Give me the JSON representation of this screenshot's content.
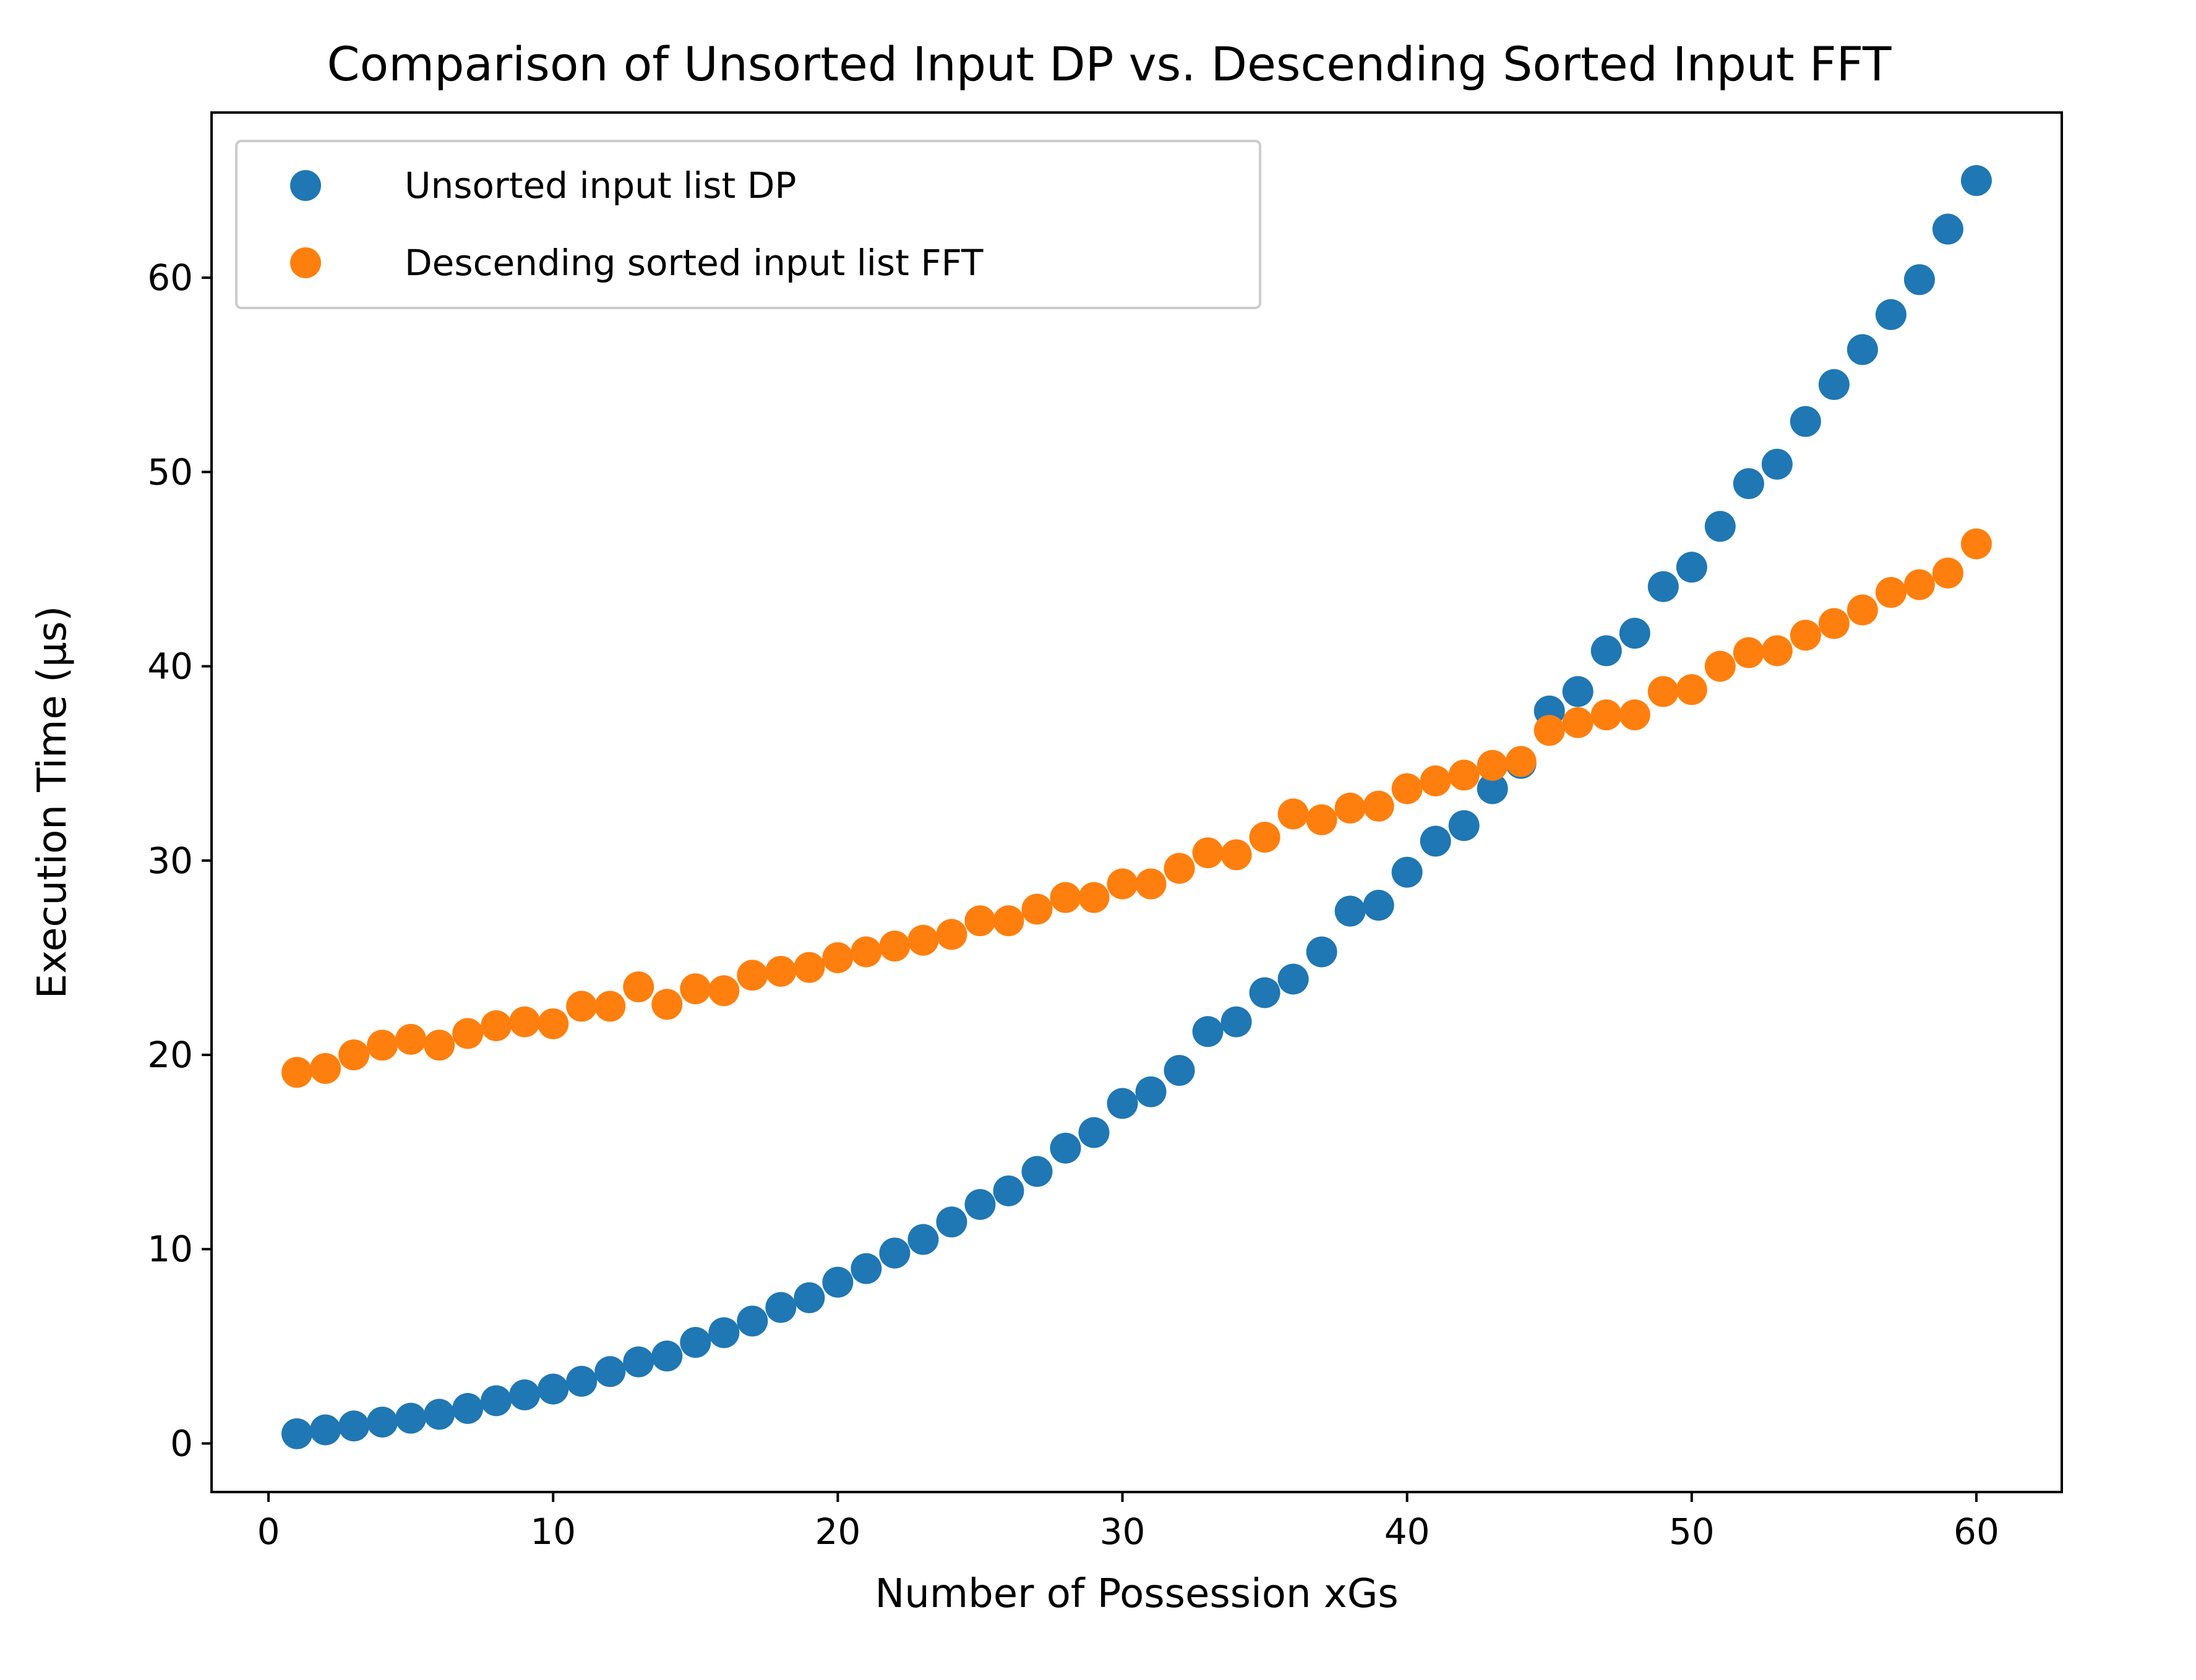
{
  "chart_data": {
    "type": "scatter",
    "title": "Comparison of Unsorted Input DP vs. Descending Sorted Input FFT",
    "xlabel": "Number of Possession xGs",
    "ylabel": "Execution Time (μs)",
    "xlim": [
      -2,
      63
    ],
    "ylim": [
      -2.5,
      68.5
    ],
    "xticks": [
      0,
      10,
      20,
      30,
      40,
      50,
      60
    ],
    "yticks": [
      0,
      10,
      20,
      30,
      40,
      50,
      60
    ],
    "grid": false,
    "legend_position": "top-left",
    "x": [
      1,
      2,
      3,
      4,
      5,
      6,
      7,
      8,
      9,
      10,
      11,
      12,
      13,
      14,
      15,
      16,
      17,
      18,
      19,
      20,
      21,
      22,
      23,
      24,
      25,
      26,
      27,
      28,
      29,
      30,
      31,
      32,
      33,
      34,
      35,
      36,
      37,
      38,
      39,
      40,
      41,
      42,
      43,
      44,
      45,
      46,
      47,
      48,
      49,
      50,
      51,
      52,
      53,
      54,
      55,
      56,
      57,
      58,
      59,
      60
    ],
    "series": [
      {
        "name": "Unsorted input list DP",
        "color": "#1f77b4",
        "values": [
          0.5,
          0.7,
          0.9,
          1.1,
          1.3,
          1.5,
          1.8,
          2.2,
          2.5,
          2.8,
          3.2,
          3.7,
          4.2,
          4.5,
          5.2,
          5.7,
          6.3,
          7.0,
          7.5,
          8.3,
          9.0,
          9.8,
          10.5,
          11.4,
          12.3,
          13.0,
          14.0,
          15.2,
          16.0,
          17.5,
          18.1,
          19.2,
          21.2,
          21.7,
          23.2,
          23.9,
          25.3,
          27.4,
          27.7,
          29.4,
          31.0,
          31.8,
          33.7,
          35.0,
          37.7,
          38.7,
          40.8,
          41.7,
          44.1,
          45.1,
          47.2,
          49.4,
          50.4,
          52.6,
          54.5,
          56.3,
          58.1,
          59.9,
          62.5,
          65.0
        ]
      },
      {
        "name": "Descending sorted input list FFT",
        "color": "#ff7f0e",
        "values": [
          19.1,
          19.3,
          20.0,
          20.5,
          20.8,
          20.5,
          21.1,
          21.5,
          21.7,
          21.6,
          22.5,
          22.5,
          23.5,
          22.6,
          23.4,
          23.3,
          24.1,
          24.3,
          24.5,
          25.0,
          25.3,
          25.6,
          25.9,
          26.2,
          26.9,
          26.9,
          27.5,
          28.1,
          28.1,
          28.8,
          28.8,
          29.6,
          30.4,
          30.3,
          31.2,
          32.4,
          32.1,
          32.7,
          32.8,
          33.7,
          34.1,
          34.4,
          34.9,
          35.1,
          36.7,
          37.1,
          37.5,
          37.5,
          38.7,
          38.8,
          40.0,
          40.7,
          40.8,
          41.6,
          42.2,
          42.9,
          43.8,
          44.2,
          44.8,
          46.3
        ]
      }
    ]
  }
}
